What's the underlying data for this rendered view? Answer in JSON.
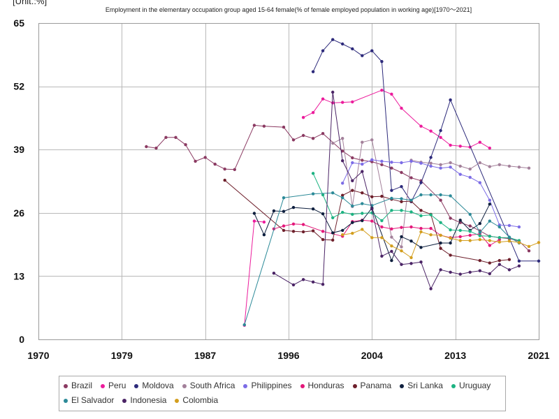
{
  "chart_data": {
    "type": "line",
    "unit_label": "[Unit.:%]",
    "title": "Employment in the elementary occupation group aged 15-64 female(% of female employed population in working age)[1970～2021]",
    "xlim": [
      1970,
      2021
    ],
    "ylim": [
      0,
      65
    ],
    "xticks": [
      "1970",
      "1979",
      "1987",
      "1996",
      "2004",
      "2013",
      "2021"
    ],
    "yticks": [
      0,
      13,
      26,
      39,
      52,
      65
    ],
    "grid": true,
    "legend_position": "bottom",
    "series": [
      {
        "name": "Brazil",
        "color": "#8B3A62",
        "points": [
          [
            1981,
            39.6
          ],
          [
            1982,
            39.3
          ],
          [
            1983,
            41.5
          ],
          [
            1984,
            41.5
          ],
          [
            1985,
            40.0
          ],
          [
            1986,
            36.6
          ],
          [
            1987,
            37.4
          ],
          [
            1988,
            36.0
          ],
          [
            1989,
            35.0
          ],
          [
            1990,
            34.9
          ],
          [
            1992,
            44.0
          ],
          [
            1993,
            43.8
          ],
          [
            1995,
            43.6
          ],
          [
            1996,
            41.0
          ],
          [
            1997,
            41.9
          ],
          [
            1998,
            41.3
          ],
          [
            1999,
            42.3
          ],
          [
            2001,
            38.7
          ],
          [
            2002,
            37.3
          ],
          [
            2003,
            36.8
          ],
          [
            2004,
            36.5
          ],
          [
            2005,
            35.9
          ],
          [
            2006,
            35.2
          ],
          [
            2007,
            34.3
          ],
          [
            2008,
            33.2
          ],
          [
            2009,
            32.6
          ],
          [
            2011,
            28.6
          ],
          [
            2012,
            24.9
          ],
          [
            2013,
            24.0
          ],
          [
            2014,
            23.3
          ],
          [
            2015,
            22.3
          ],
          [
            2016,
            21.2
          ],
          [
            2017,
            20.9
          ],
          [
            2018,
            20.7
          ],
          [
            2019,
            20.2
          ],
          [
            2020,
            18.2
          ]
        ]
      },
      {
        "name": "Peru",
        "color": "#EC1C9C",
        "points": [
          [
            1991,
            2.9
          ],
          [
            1992,
            24.3
          ],
          [
            1993,
            24.1
          ],
          null,
          [
            1997,
            45.6
          ],
          [
            1998,
            46.6
          ],
          [
            1999,
            49.4
          ],
          [
            2000,
            48.6
          ],
          [
            2001,
            48.7
          ],
          [
            2002,
            48.8
          ],
          [
            2005,
            51.2
          ],
          [
            2006,
            50.4
          ],
          [
            2007,
            47.5
          ],
          [
            2009,
            43.8
          ],
          [
            2010,
            42.8
          ],
          [
            2011,
            41.5
          ],
          [
            2012,
            39.9
          ],
          [
            2013,
            39.7
          ],
          [
            2014,
            39.5
          ],
          [
            2015,
            40.5
          ],
          [
            2016,
            39.3
          ]
        ]
      },
      {
        "name": "Moldova",
        "color": "#2D2A7B",
        "points": [
          [
            1998,
            55.0
          ],
          [
            1999,
            59.3
          ],
          [
            2000,
            61.6
          ],
          [
            2001,
            60.7
          ],
          [
            2002,
            59.7
          ],
          [
            2003,
            58.3
          ],
          [
            2004,
            59.3
          ],
          [
            2005,
            57.1
          ],
          [
            2006,
            30.6
          ],
          [
            2007,
            31.4
          ],
          [
            2008,
            28.3
          ],
          [
            2009,
            32.2
          ],
          [
            2010,
            37.4
          ],
          [
            2011,
            42.9
          ],
          [
            2012,
            49.2
          ],
          [
            2019,
            16.1
          ],
          [
            2021,
            16.1
          ]
        ]
      },
      {
        "name": "South Africa",
        "color": "#A3809A",
        "points": [
          [
            2000,
            40.3
          ],
          [
            2001,
            41.3
          ],
          [
            2002,
            27.3
          ],
          [
            2003,
            40.5
          ],
          [
            2004,
            41.0
          ],
          [
            2006,
            21.0
          ],
          [
            2007,
            19.0
          ],
          [
            2008,
            36.8
          ],
          [
            2009,
            36.4
          ],
          [
            2010,
            36.2
          ],
          [
            2011,
            35.9
          ],
          [
            2012,
            36.3
          ],
          [
            2013,
            35.6
          ],
          [
            2014,
            35.0
          ],
          [
            2015,
            36.3
          ],
          [
            2016,
            35.5
          ],
          [
            2017,
            35.9
          ],
          [
            2018,
            35.6
          ],
          [
            2019,
            35.4
          ],
          [
            2020,
            35.2
          ]
        ]
      },
      {
        "name": "Philippines",
        "color": "#7C6CE6",
        "points": [
          [
            2001,
            32.1
          ],
          [
            2002,
            36.3
          ],
          [
            2003,
            36.0
          ],
          [
            2004,
            36.9
          ],
          [
            2005,
            36.6
          ],
          [
            2006,
            36.4
          ],
          [
            2007,
            36.3
          ],
          [
            2008,
            36.6
          ],
          [
            2009,
            36.2
          ],
          [
            2010,
            35.6
          ],
          [
            2011,
            35.2
          ],
          [
            2012,
            35.4
          ],
          [
            2013,
            33.9
          ],
          [
            2014,
            33.3
          ],
          [
            2015,
            32.2
          ],
          [
            2016,
            28.6
          ],
          [
            2017,
            23.5
          ],
          [
            2018,
            23.4
          ],
          [
            2019,
            23.1
          ]
        ]
      },
      {
        "name": "Honduras",
        "color": "#E4187A",
        "points": [
          [
            1994,
            22.7
          ],
          [
            1995,
            23.3
          ],
          [
            1996,
            23.7
          ],
          [
            1997,
            23.6
          ],
          [
            1999,
            22.2
          ],
          [
            2001,
            21.2
          ],
          [
            2002,
            24.2
          ],
          [
            2003,
            24.5
          ],
          [
            2004,
            24.3
          ],
          [
            2005,
            23.1
          ],
          [
            2006,
            22.7
          ],
          [
            2007,
            23.0
          ],
          [
            2008,
            23.1
          ],
          [
            2009,
            22.8
          ],
          [
            2010,
            22.8
          ],
          [
            2011,
            21.4
          ],
          [
            2012,
            20.9
          ],
          [
            2013,
            21.1
          ],
          [
            2014,
            21.4
          ],
          [
            2015,
            21.7
          ],
          [
            2016,
            19.3
          ],
          [
            2017,
            20.5
          ]
        ]
      },
      {
        "name": "Panama",
        "color": "#6E1F2B",
        "points": [
          [
            1989,
            32.7
          ],
          [
            1995,
            22.4
          ],
          [
            1996,
            22.2
          ],
          [
            1997,
            22.1
          ],
          [
            1998,
            22.3
          ],
          [
            1999,
            20.5
          ],
          [
            2000,
            20.4
          ],
          [
            2001,
            29.6
          ],
          [
            2002,
            30.6
          ],
          [
            2003,
            30.1
          ],
          [
            2004,
            29.3
          ],
          [
            2005,
            29.4
          ],
          [
            2006,
            28.8
          ],
          [
            2007,
            28.3
          ],
          [
            2008,
            28.4
          ],
          [
            2009,
            26.5
          ],
          [
            2010,
            25.7
          ],
          [
            2011,
            18.7
          ],
          [
            2012,
            17.3
          ],
          [
            2015,
            16.2
          ],
          [
            2016,
            15.7
          ],
          [
            2017,
            16.2
          ],
          [
            2018,
            16.4
          ]
        ]
      },
      {
        "name": "Sri Lanka",
        "color": "#0E1F3E",
        "points": [
          [
            1992,
            25.9
          ],
          [
            1993,
            21.5
          ],
          [
            1994,
            26.4
          ],
          [
            1995,
            26.3
          ],
          [
            1996,
            27.1
          ],
          [
            1998,
            26.8
          ],
          [
            1999,
            25.8
          ],
          [
            2000,
            21.9
          ],
          [
            2001,
            22.4
          ],
          [
            2002,
            24.0
          ],
          [
            2003,
            24.4
          ],
          [
            2004,
            27.0
          ],
          [
            2006,
            16.2
          ],
          [
            2007,
            21.1
          ],
          [
            2008,
            20.2
          ],
          [
            2009,
            18.9
          ],
          [
            2011,
            19.8
          ],
          [
            2012,
            19.8
          ],
          [
            2013,
            24.5
          ],
          [
            2014,
            22.4
          ],
          [
            2015,
            23.8
          ],
          [
            2016,
            27.8
          ]
        ]
      },
      {
        "name": "Uruguay",
        "color": "#1DB382",
        "points": [
          [
            1998,
            34.1
          ],
          [
            1999,
            29.7
          ],
          [
            2000,
            25.0
          ],
          [
            2001,
            26.1
          ],
          [
            2002,
            25.7
          ],
          [
            2003,
            25.9
          ],
          [
            2004,
            26.0
          ],
          [
            2005,
            24.4
          ],
          [
            2006,
            26.5
          ],
          [
            2007,
            26.5
          ],
          [
            2008,
            26.2
          ],
          [
            2009,
            25.4
          ],
          [
            2010,
            25.6
          ],
          [
            2011,
            24.0
          ],
          [
            2012,
            22.5
          ],
          [
            2013,
            22.4
          ],
          [
            2014,
            22.2
          ],
          [
            2015,
            21.3
          ],
          [
            2016,
            21.2
          ],
          [
            2017,
            20.9
          ],
          [
            2018,
            20.9
          ],
          [
            2019,
            20.3
          ]
        ]
      },
      {
        "name": "El Salvador",
        "color": "#2C8A98",
        "points": [
          [
            1991,
            3.0
          ],
          [
            1995,
            29.1
          ],
          [
            1998,
            29.9
          ],
          [
            2000,
            30.1
          ],
          [
            2001,
            29.1
          ],
          [
            2002,
            27.4
          ],
          [
            2003,
            27.9
          ],
          [
            2004,
            27.5
          ],
          [
            2006,
            29.0
          ],
          [
            2007,
            28.9
          ],
          [
            2008,
            28.6
          ],
          [
            2009,
            29.7
          ],
          [
            2010,
            29.7
          ],
          [
            2011,
            29.7
          ],
          [
            2012,
            29.5
          ],
          [
            2014,
            25.7
          ],
          [
            2015,
            22.0
          ],
          [
            2016,
            24.3
          ],
          [
            2017,
            23.1
          ],
          [
            2018,
            21.0
          ],
          [
            2019,
            19.8
          ]
        ]
      },
      {
        "name": "Indonesia",
        "color": "#4B2466",
        "points": [
          [
            1994,
            13.6
          ],
          [
            1996,
            11.2
          ],
          [
            1997,
            12.3
          ],
          [
            1998,
            11.8
          ],
          [
            1999,
            11.3
          ],
          [
            2000,
            50.8
          ],
          [
            2001,
            36.7
          ],
          [
            2002,
            32.6
          ],
          [
            2003,
            34.5
          ],
          [
            2004,
            26.8
          ],
          [
            2005,
            17.1
          ],
          [
            2006,
            18.1
          ],
          [
            2007,
            15.4
          ],
          [
            2008,
            15.6
          ],
          [
            2009,
            15.9
          ],
          [
            2010,
            10.4
          ],
          [
            2011,
            14.3
          ],
          [
            2012,
            13.8
          ],
          [
            2013,
            13.4
          ],
          [
            2014,
            13.8
          ],
          [
            2015,
            14.1
          ],
          [
            2016,
            13.5
          ],
          [
            2017,
            15.4
          ],
          [
            2018,
            14.3
          ],
          [
            2019,
            15.1
          ]
        ]
      },
      {
        "name": "Colombia",
        "color": "#D39E1E",
        "points": [
          [
            2001,
            21.5
          ],
          [
            2002,
            21.8
          ],
          [
            2003,
            22.6
          ],
          [
            2004,
            20.9
          ],
          [
            2005,
            20.9
          ],
          [
            2006,
            19.2
          ],
          [
            2007,
            18.2
          ],
          [
            2008,
            16.8
          ],
          [
            2009,
            22.1
          ],
          [
            2010,
            21.5
          ],
          [
            2011,
            21.4
          ],
          [
            2012,
            20.8
          ],
          [
            2013,
            20.3
          ],
          [
            2014,
            20.3
          ],
          [
            2015,
            20.5
          ],
          [
            2016,
            20.3
          ],
          [
            2017,
            20.0
          ],
          [
            2018,
            20.2
          ],
          [
            2019,
            19.9
          ],
          [
            2020,
            19.1
          ],
          [
            2021,
            19.9
          ]
        ]
      }
    ]
  }
}
